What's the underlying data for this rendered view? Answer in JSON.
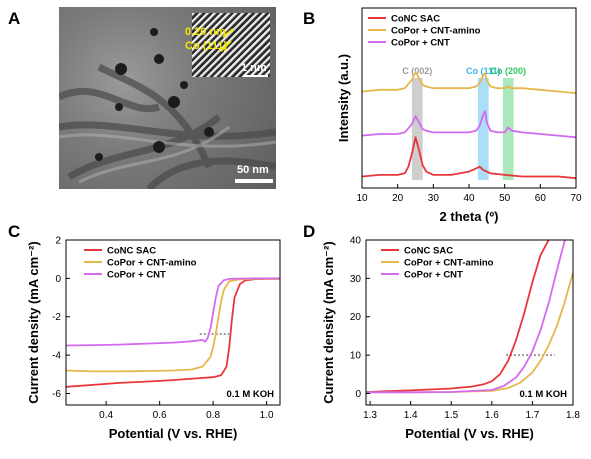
{
  "panels": {
    "A": {
      "letter": "A",
      "fringe_label": "0.20 nm",
      "plane_label": "Co (111)",
      "inset_scale": "1 nm",
      "main_scale": "50 nm"
    },
    "B": {
      "letter": "B"
    },
    "C": {
      "letter": "C"
    },
    "D": {
      "letter": "D"
    }
  },
  "chart_data": [
    {
      "panel": "B",
      "type": "line",
      "xlabel": "2 theta (º)",
      "ylabel": "Intensity (a.u.)",
      "xlim": [
        10,
        70
      ],
      "xticks": [
        "10",
        "20",
        "30",
        "40",
        "50",
        "60",
        "70"
      ],
      "legend_position": "top-left",
      "series": [
        {
          "name": "CoNC SAC",
          "color": "#e8363a",
          "offset": 0.0,
          "x": [
            10,
            15,
            20,
            22,
            23,
            24,
            25,
            26,
            27,
            28,
            30,
            35,
            40,
            42,
            43,
            44,
            46,
            50,
            55,
            60,
            65,
            70
          ],
          "y": [
            0.02,
            0.03,
            0.03,
            0.04,
            0.08,
            0.16,
            0.26,
            0.18,
            0.09,
            0.05,
            0.03,
            0.03,
            0.05,
            0.07,
            0.08,
            0.06,
            0.04,
            0.03,
            0.02,
            0.02,
            0.02,
            0.01
          ]
        },
        {
          "name": "CoPor + CNT-amino",
          "color": "#e6b84a",
          "offset": 0.54,
          "x": [
            10,
            15,
            20,
            22,
            24,
            25,
            26,
            27,
            28,
            30,
            35,
            40,
            42,
            43,
            44,
            44.5,
            45,
            46,
            48,
            50,
            51,
            52,
            55,
            60,
            65,
            70
          ],
          "y": [
            0.0,
            0.01,
            0.01,
            0.02,
            0.07,
            0.12,
            0.08,
            0.04,
            0.03,
            0.02,
            0.02,
            0.02,
            0.03,
            0.05,
            0.1,
            0.11,
            0.07,
            0.03,
            0.02,
            0.02,
            0.03,
            0.02,
            0.02,
            0.01,
            0.0,
            -0.01
          ]
        },
        {
          "name": "CoPor + CNT",
          "color": "#d46af0",
          "offset": 0.27,
          "x": [
            10,
            15,
            20,
            22,
            24,
            25,
            26,
            27,
            28,
            30,
            35,
            40,
            42,
            43,
            44,
            44.5,
            45,
            46,
            48,
            50,
            51,
            52,
            55,
            60,
            65,
            70
          ],
          "y": [
            0.0,
            0.01,
            0.01,
            0.02,
            0.07,
            0.12,
            0.08,
            0.04,
            0.03,
            0.02,
            0.02,
            0.02,
            0.03,
            0.06,
            0.13,
            0.15,
            0.08,
            0.03,
            0.02,
            0.02,
            0.05,
            0.03,
            0.02,
            0.01,
            0.0,
            -0.01
          ]
        }
      ],
      "highlight_bands": [
        {
          "label": "C (002)",
          "x_range": [
            24,
            27
          ],
          "color": "#bdbdbd",
          "label_color": "#9a9a9a"
        },
        {
          "label": "Co (111)",
          "x_range": [
            42.5,
            45.5
          ],
          "color": "#8fd3f5",
          "label_color": "#32b4ee"
        },
        {
          "label": "Co (200)",
          "x_range": [
            49.5,
            52.5
          ],
          "color": "#8fe0a6",
          "label_color": "#2fc65d"
        }
      ]
    },
    {
      "panel": "C",
      "type": "line",
      "xlabel": "Potential (V vs. RHE)",
      "ylabel": "Current density (mA cm⁻²)",
      "xlim": [
        0.25,
        1.05
      ],
      "ylim": [
        -6.6,
        2
      ],
      "xticks": [
        "0.4",
        "0.6",
        "0.8",
        "1.0"
      ],
      "yticks": [
        "2",
        "0",
        "-2",
        "-4",
        "-6"
      ],
      "annotation": "0.1 M KOH",
      "legend_position": "top-left",
      "series": [
        {
          "name": "CoNC SAC",
          "color": "#e8363a",
          "x": [
            0.25,
            0.35,
            0.45,
            0.55,
            0.65,
            0.75,
            0.8,
            0.83,
            0.85,
            0.86,
            0.87,
            0.88,
            0.9,
            0.92,
            0.95,
            1.0,
            1.05
          ],
          "y": [
            -5.65,
            -5.55,
            -5.45,
            -5.38,
            -5.3,
            -5.2,
            -5.15,
            -5.05,
            -4.6,
            -3.6,
            -2.2,
            -1.0,
            -0.3,
            -0.1,
            -0.05,
            -0.03,
            -0.02
          ]
        },
        {
          "name": "CoPor + CNT-amino",
          "color": "#e6b84a",
          "x": [
            0.25,
            0.35,
            0.45,
            0.55,
            0.65,
            0.72,
            0.76,
            0.79,
            0.8,
            0.81,
            0.82,
            0.83,
            0.84,
            0.86,
            0.9,
            0.95,
            1.05
          ],
          "y": [
            -4.8,
            -4.85,
            -4.85,
            -4.83,
            -4.8,
            -4.75,
            -4.6,
            -4.1,
            -3.6,
            -2.9,
            -2.0,
            -1.2,
            -0.6,
            -0.15,
            -0.05,
            -0.02,
            -0.01
          ]
        },
        {
          "name": "CoPor + CNT",
          "color": "#d46af0",
          "x": [
            0.25,
            0.35,
            0.45,
            0.55,
            0.65,
            0.7,
            0.74,
            0.76,
            0.77,
            0.78,
            0.79,
            0.8,
            0.81,
            0.82,
            0.84,
            0.86,
            0.9,
            0.95,
            1.05
          ],
          "y": [
            -3.5,
            -3.48,
            -3.45,
            -3.4,
            -3.35,
            -3.3,
            -3.25,
            -3.2,
            -3.3,
            -3.1,
            -2.6,
            -1.8,
            -1.0,
            -0.4,
            -0.1,
            -0.03,
            -0.01,
            0.0,
            0.0
          ]
        }
      ],
      "guide_line": {
        "x_range": [
          0.75,
          0.86
        ],
        "y": -2.9
      }
    },
    {
      "panel": "D",
      "type": "line",
      "xlabel": "Potential (V vs. RHE)",
      "ylabel": "Current density (mA cm⁻²)",
      "xlim": [
        1.29,
        1.8
      ],
      "ylim": [
        -3,
        40
      ],
      "xticks": [
        "1.3",
        "1.4",
        "1.5",
        "1.6",
        "1.7",
        "1.8"
      ],
      "yticks": [
        "0",
        "10",
        "20",
        "30",
        "40"
      ],
      "annotation": "0.1 M KOH",
      "legend_position": "top-left",
      "series": [
        {
          "name": "CoNC SAC",
          "color": "#e8363a",
          "x": [
            1.29,
            1.4,
            1.5,
            1.55,
            1.58,
            1.6,
            1.62,
            1.64,
            1.66,
            1.68,
            1.7,
            1.72,
            1.74
          ],
          "y": [
            0.4,
            0.8,
            1.3,
            1.8,
            2.4,
            3.2,
            5.0,
            8.5,
            14.0,
            21.0,
            29.0,
            36.0,
            40.0
          ]
        },
        {
          "name": "CoPor + CNT-amino",
          "color": "#e6b84a",
          "x": [
            1.29,
            1.4,
            1.5,
            1.6,
            1.64,
            1.67,
            1.7,
            1.72,
            1.74,
            1.76,
            1.78,
            1.8
          ],
          "y": [
            0.3,
            0.3,
            0.4,
            0.7,
            1.4,
            2.8,
            5.5,
            8.5,
            12.5,
            17.5,
            24.0,
            31.5
          ]
        },
        {
          "name": "CoPor + CNT",
          "color": "#d46af0",
          "x": [
            1.29,
            1.4,
            1.5,
            1.6,
            1.63,
            1.66,
            1.68,
            1.7,
            1.72,
            1.74,
            1.76,
            1.78
          ],
          "y": [
            0.3,
            0.3,
            0.4,
            0.9,
            2.0,
            4.2,
            7.0,
            11.0,
            16.5,
            23.5,
            32.0,
            40.0
          ]
        }
      ],
      "guide_line": {
        "x_range": [
          1.635,
          1.755
        ],
        "y": 10
      }
    }
  ]
}
